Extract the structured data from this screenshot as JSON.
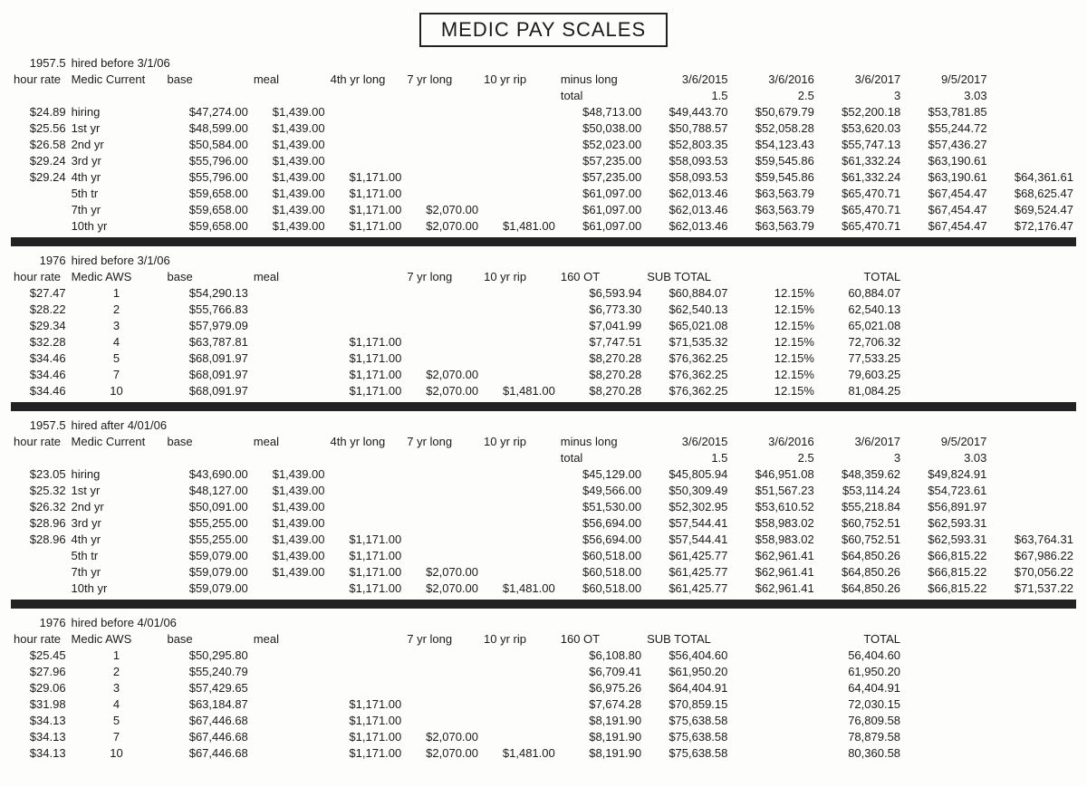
{
  "title": "MEDIC PAY SCALES",
  "s1": {
    "code": "1957.5",
    "hired": "hired before 3/1/06",
    "hdr": {
      "rate": "hour rate",
      "label": "Medic Current",
      "base": "base",
      "meal": "meal",
      "c4yr": "4th yr long",
      "c7yr": "7 yr long",
      "c10yr": "10 yr rip",
      "minus": "minus long",
      "d1": "3/6/2015",
      "d2": "3/6/2016",
      "d3": "3/6/2017",
      "d4": "9/5/2017"
    },
    "sub": {
      "total": "total",
      "v1": "1.5",
      "v2": "2.5",
      "v3": "3",
      "v4": "3.03"
    },
    "rows": [
      {
        "rate": "$24.89",
        "label": "hiring",
        "base": "$47,274.00",
        "meal": "$1,439.00",
        "y4": "",
        "y7": "",
        "y10": "",
        "t": "$48,713.00",
        "d1": "$49,443.70",
        "d2": "$50,679.79",
        "d3": "$52,200.18",
        "d4": "$53,781.85",
        "ex": ""
      },
      {
        "rate": "$25.56",
        "label": "1st yr",
        "base": "$48,599.00",
        "meal": "$1,439.00",
        "y4": "",
        "y7": "",
        "y10": "",
        "t": "$50,038.00",
        "d1": "$50,788.57",
        "d2": "$52,058.28",
        "d3": "$53,620.03",
        "d4": "$55,244.72",
        "ex": ""
      },
      {
        "rate": "$26.58",
        "label": "2nd yr",
        "base": "$50,584.00",
        "meal": "$1,439.00",
        "y4": "",
        "y7": "",
        "y10": "",
        "t": "$52,023.00",
        "d1": "$52,803.35",
        "d2": "$54,123.43",
        "d3": "$55,747.13",
        "d4": "$57,436.27",
        "ex": ""
      },
      {
        "rate": "$29.24",
        "label": "3rd yr",
        "base": "$55,796.00",
        "meal": "$1,439.00",
        "y4": "",
        "y7": "",
        "y10": "",
        "t": "$57,235.00",
        "d1": "$58,093.53",
        "d2": "$59,545.86",
        "d3": "$61,332.24",
        "d4": "$63,190.61",
        "ex": ""
      },
      {
        "rate": "$29.24",
        "label": "4th yr",
        "base": "$55,796.00",
        "meal": "$1,439.00",
        "y4": "$1,171.00",
        "y7": "",
        "y10": "",
        "t": "$57,235.00",
        "d1": "$58,093.53",
        "d2": "$59,545.86",
        "d3": "$61,332.24",
        "d4": "$63,190.61",
        "ex": "$64,361.61"
      },
      {
        "rate": "",
        "label": "5th tr",
        "base": "$59,658.00",
        "meal": "$1,439.00",
        "y4": "$1,171.00",
        "y7": "",
        "y10": "",
        "t": "$61,097.00",
        "d1": "$62,013.46",
        "d2": "$63,563.79",
        "d3": "$65,470.71",
        "d4": "$67,454.47",
        "ex": "$68,625.47"
      },
      {
        "rate": "",
        "label": "7th yr",
        "base": "$59,658.00",
        "meal": "$1,439.00",
        "y4": "$1,171.00",
        "y7": "$2,070.00",
        "y10": "",
        "t": "$61,097.00",
        "d1": "$62,013.46",
        "d2": "$63,563.79",
        "d3": "$65,470.71",
        "d4": "$67,454.47",
        "ex": "$69,524.47"
      },
      {
        "rate": "",
        "label": "10th yr",
        "base": "$59,658.00",
        "meal": "$1,439.00",
        "y4": "$1,171.00",
        "y7": "$2,070.00",
        "y10": "$1,481.00",
        "t": "$61,097.00",
        "d1": "$62,013.46",
        "d2": "$63,563.79",
        "d3": "$65,470.71",
        "d4": "$67,454.47",
        "ex": "$72,176.47"
      }
    ]
  },
  "s2": {
    "code": "1976",
    "hired": "hired before 3/1/06",
    "hdr": {
      "rate": "hour rate",
      "label": "Medic AWS",
      "base": "base",
      "meal": "meal",
      "c7yr": "7 yr long",
      "c10yr": "10 yr rip",
      "ot": "160 OT",
      "sub": "SUB TOTAL",
      "tot": "TOTAL"
    },
    "pct": "12.15%",
    "rows": [
      {
        "rate": "$27.47",
        "label": "1",
        "base": "$54,290.13",
        "y4": "",
        "y7": "",
        "y10": "",
        "ot": "$6,593.94",
        "sub": "$60,884.07",
        "tot": "60,884.07"
      },
      {
        "rate": "$28.22",
        "label": "2",
        "base": "$55,766.83",
        "y4": "",
        "y7": "",
        "y10": "",
        "ot": "$6,773.30",
        "sub": "$62,540.13",
        "tot": "62,540.13"
      },
      {
        "rate": "$29.34",
        "label": "3",
        "base": "$57,979.09",
        "y4": "",
        "y7": "",
        "y10": "",
        "ot": "$7,041.99",
        "sub": "$65,021.08",
        "tot": "65,021.08"
      },
      {
        "rate": "$32.28",
        "label": "4",
        "base": "$63,787.81",
        "y4": "$1,171.00",
        "y7": "",
        "y10": "",
        "ot": "$7,747.51",
        "sub": "$71,535.32",
        "tot": "72,706.32"
      },
      {
        "rate": "$34.46",
        "label": "5",
        "base": "$68,091.97",
        "y4": "$1,171.00",
        "y7": "",
        "y10": "",
        "ot": "$8,270.28",
        "sub": "$76,362.25",
        "tot": "77,533.25"
      },
      {
        "rate": "$34.46",
        "label": "7",
        "base": "$68,091.97",
        "y4": "$1,171.00",
        "y7": "$2,070.00",
        "y10": "",
        "ot": "$8,270.28",
        "sub": "$76,362.25",
        "tot": "79,603.25"
      },
      {
        "rate": "$34.46",
        "label": "10",
        "base": "$68,091.97",
        "y4": "$1,171.00",
        "y7": "$2,070.00",
        "y10": "$1,481.00",
        "ot": "$8,270.28",
        "sub": "$76,362.25",
        "tot": "81,084.25"
      }
    ]
  },
  "s3": {
    "code": "1957.5",
    "hired": "hired after 4/01/06",
    "hdr": {
      "rate": "hour rate",
      "label": "Medic Current",
      "base": "base",
      "meal": "meal",
      "c4yr": "4th yr long",
      "c7yr": "7 yr long",
      "c10yr": "10 yr rip",
      "minus": "minus long",
      "d1": "3/6/2015",
      "d2": "3/6/2016",
      "d3": "3/6/2017",
      "d4": "9/5/2017"
    },
    "sub": {
      "total": "total",
      "v1": "1.5",
      "v2": "2.5",
      "v3": "3",
      "v4": "3.03"
    },
    "rows": [
      {
        "rate": "$23.05",
        "label": "hiring",
        "base": "$43,690.00",
        "meal": "$1,439.00",
        "y4": "",
        "y7": "",
        "y10": "",
        "t": "$45,129.00",
        "d1": "$45,805.94",
        "d2": "$46,951.08",
        "d3": "$48,359.62",
        "d4": "$49,824.91",
        "ex": ""
      },
      {
        "rate": "$25.32",
        "label": "1st yr",
        "base": "$48,127.00",
        "meal": "$1,439.00",
        "y4": "",
        "y7": "",
        "y10": "",
        "t": "$49,566.00",
        "d1": "$50,309.49",
        "d2": "$51,567.23",
        "d3": "$53,114.24",
        "d4": "$54,723.61",
        "ex": ""
      },
      {
        "rate": "$26.32",
        "label": "2nd yr",
        "base": "$50,091.00",
        "meal": "$1,439.00",
        "y4": "",
        "y7": "",
        "y10": "",
        "t": "$51,530.00",
        "d1": "$52,302.95",
        "d2": "$53,610.52",
        "d3": "$55,218.84",
        "d4": "$56,891.97",
        "ex": ""
      },
      {
        "rate": "$28.96",
        "label": "3rd yr",
        "base": "$55,255.00",
        "meal": "$1,439.00",
        "y4": "",
        "y7": "",
        "y10": "",
        "t": "$56,694.00",
        "d1": "$57,544.41",
        "d2": "$58,983.02",
        "d3": "$60,752.51",
        "d4": "$62,593.31",
        "ex": ""
      },
      {
        "rate": "$28.96",
        "label": "4th yr",
        "base": "$55,255.00",
        "meal": "$1,439.00",
        "y4": "$1,171.00",
        "y7": "",
        "y10": "",
        "t": "$56,694.00",
        "d1": "$57,544.41",
        "d2": "$58,983.02",
        "d3": "$60,752.51",
        "d4": "$62,593.31",
        "ex": "$63,764.31"
      },
      {
        "rate": "",
        "label": "5th tr",
        "base": "$59,079.00",
        "meal": "$1,439.00",
        "y4": "$1,171.00",
        "y7": "",
        "y10": "",
        "t": "$60,518.00",
        "d1": "$61,425.77",
        "d2": "$62,961.41",
        "d3": "$64,850.26",
        "d4": "$66,815.22",
        "ex": "$67,986.22"
      },
      {
        "rate": "",
        "label": "7th yr",
        "base": "$59,079.00",
        "meal": "$1,439.00",
        "y4": "$1,171.00",
        "y7": "$2,070.00",
        "y10": "",
        "t": "$60,518.00",
        "d1": "$61,425.77",
        "d2": "$62,961.41",
        "d3": "$64,850.26",
        "d4": "$66,815.22",
        "ex": "$70,056.22"
      },
      {
        "rate": "",
        "label": "10th yr",
        "base": "$59,079.00",
        "meal": "",
        "y4": "$1,171.00",
        "y7": "$2,070.00",
        "y10": "$1,481.00",
        "t": "$60,518.00",
        "d1": "$61,425.77",
        "d2": "$62,961.41",
        "d3": "$64,850.26",
        "d4": "$66,815.22",
        "ex": "$71,537.22"
      }
    ]
  },
  "s4": {
    "code": "1976",
    "hired": "hired before 4/01/06",
    "hdr": {
      "rate": "hour rate",
      "label": "Medic AWS",
      "base": "base",
      "meal": "meal",
      "c7yr": "7 yr long",
      "c10yr": "10 yr rip",
      "ot": "160 OT",
      "sub": "SUB TOTAL",
      "tot": "TOTAL"
    },
    "rows": [
      {
        "rate": "$25.45",
        "label": "1",
        "base": "$50,295.80",
        "y4": "",
        "y7": "",
        "y10": "",
        "ot": "$6,108.80",
        "sub": "$56,404.60",
        "tot": "56,404.60"
      },
      {
        "rate": "$27.96",
        "label": "2",
        "base": "$55,240.79",
        "y4": "",
        "y7": "",
        "y10": "",
        "ot": "$6,709.41",
        "sub": "$61,950.20",
        "tot": "61,950.20"
      },
      {
        "rate": "$29.06",
        "label": "3",
        "base": "$57,429.65",
        "y4": "",
        "y7": "",
        "y10": "",
        "ot": "$6,975.26",
        "sub": "$64,404.91",
        "tot": "64,404.91"
      },
      {
        "rate": "$31.98",
        "label": "4",
        "base": "$63,184.87",
        "y4": "$1,171.00",
        "y7": "",
        "y10": "",
        "ot": "$7,674.28",
        "sub": "$70,859.15",
        "tot": "72,030.15"
      },
      {
        "rate": "$34.13",
        "label": "5",
        "base": "$67,446.68",
        "y4": "$1,171.00",
        "y7": "",
        "y10": "",
        "ot": "$8,191.90",
        "sub": "$75,638.58",
        "tot": "76,809.58"
      },
      {
        "rate": "$34.13",
        "label": "7",
        "base": "$67,446.68",
        "y4": "$1,171.00",
        "y7": "$2,070.00",
        "y10": "",
        "ot": "$8,191.90",
        "sub": "$75,638.58",
        "tot": "78,879.58"
      },
      {
        "rate": "$34.13",
        "label": "10",
        "base": "$67,446.68",
        "y4": "$1,171.00",
        "y7": "$2,070.00",
        "y10": "$1,481.00",
        "ot": "$8,191.90",
        "sub": "$75,638.58",
        "tot": "80,360.58"
      }
    ]
  }
}
